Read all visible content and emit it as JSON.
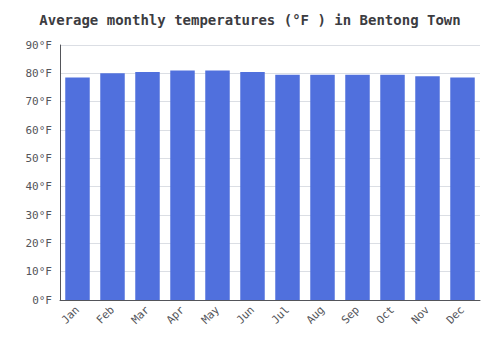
{
  "chart_data": {
    "type": "bar",
    "title": "Average monthly temperatures (°F ) in Bentong Town",
    "categories": [
      "Jan",
      "Feb",
      "Mar",
      "Apr",
      "May",
      "Jun",
      "Jul",
      "Aug",
      "Sep",
      "Oct",
      "Nov",
      "Dec"
    ],
    "values": [
      78.5,
      80.0,
      80.5,
      81.0,
      81.0,
      80.5,
      79.5,
      79.5,
      79.5,
      79.5,
      79.0,
      78.5
    ],
    "ylim": [
      0,
      90
    ],
    "yticks": [
      {
        "value": 0,
        "label": "0°F"
      },
      {
        "value": 10,
        "label": "10°F"
      },
      {
        "value": 20,
        "label": "20°F"
      },
      {
        "value": 30,
        "label": "30°F"
      },
      {
        "value": 40,
        "label": "40°F"
      },
      {
        "value": 50,
        "label": "50°F"
      },
      {
        "value": 60,
        "label": "60°F"
      },
      {
        "value": 70,
        "label": "70°F"
      },
      {
        "value": 80,
        "label": "80°F"
      },
      {
        "value": 90,
        "label": "90°F"
      }
    ],
    "grid": true
  }
}
